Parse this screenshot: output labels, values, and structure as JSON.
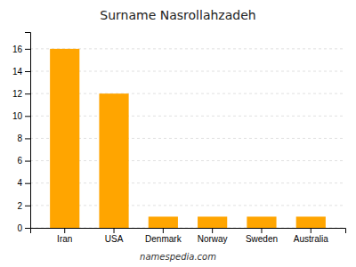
{
  "chart_data": {
    "type": "bar",
    "title": "Surname Nasrollahzadeh",
    "categories": [
      "Iran",
      "USA",
      "Denmark",
      "Norway",
      "Sweden",
      "Australia"
    ],
    "values": [
      16,
      12,
      1,
      1,
      1,
      1
    ],
    "color": "#FFA500",
    "ylim": [
      0,
      17.5
    ],
    "yticks": [
      0,
      2,
      4,
      6,
      8,
      10,
      12,
      14,
      16
    ],
    "grid": true,
    "annotations": [
      "namespedia.com"
    ]
  }
}
